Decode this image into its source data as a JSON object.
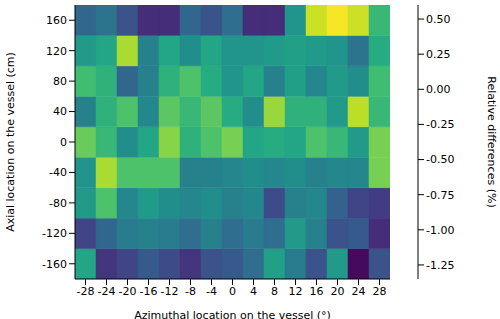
{
  "chart_data": {
    "type": "heatmap",
    "xlabel": "Azimuthal location on the vessel (°)",
    "ylabel": "Axial location on the vessel (cm)",
    "x": [
      -28,
      -24,
      -20,
      -16,
      -12,
      -8,
      -4,
      0,
      4,
      8,
      12,
      16,
      20,
      24,
      28
    ],
    "y": [
      -160,
      -120,
      -80,
      -40,
      0,
      40,
      80,
      120,
      160
    ],
    "xlim": [
      -30,
      30
    ],
    "ylim": [
      -180,
      180
    ],
    "xticks": [
      -28,
      -24,
      -20,
      -16,
      -12,
      -8,
      -4,
      0,
      4,
      8,
      12,
      16,
      20,
      24,
      28
    ],
    "yticks": [
      -160,
      -120,
      -80,
      -40,
      0,
      40,
      80,
      120,
      160
    ],
    "cells": [
      [
        -0.2,
        -1.05,
        -0.95,
        -0.8,
        -0.9,
        -1.05,
        -0.85,
        -0.8,
        -0.65,
        -0.25,
        -0.55,
        -0.85,
        -0.3,
        -1.3,
        -0.85
      ],
      [
        -0.95,
        -0.7,
        -0.55,
        -0.5,
        -0.55,
        -0.65,
        -0.5,
        -0.65,
        -0.55,
        -0.65,
        -0.3,
        -0.5,
        -0.85,
        -0.8,
        -1.1
      ],
      [
        -0.3,
        0.05,
        -0.45,
        -0.3,
        -0.4,
        -0.45,
        -0.4,
        -0.5,
        -0.45,
        -0.9,
        -0.5,
        -0.45,
        -0.75,
        -0.95,
        -1.0
      ],
      [
        -0.35,
        0.35,
        0.05,
        0.05,
        0.05,
        -0.5,
        -0.5,
        -0.45,
        -0.4,
        -0.45,
        -0.4,
        -0.5,
        -0.45,
        -0.45,
        0.2
      ],
      [
        0.15,
        -0.05,
        -0.4,
        -0.2,
        0.25,
        -0.1,
        0.05,
        0.2,
        -0.2,
        -0.15,
        -0.2,
        0.05,
        -0.05,
        -0.3,
        0.2
      ],
      [
        -0.5,
        -0.1,
        0.05,
        -0.45,
        0.1,
        -0.05,
        0.1,
        -0.15,
        -0.4,
        0.3,
        -0.1,
        -0.1,
        -0.3,
        0.4,
        -0.05
      ],
      [
        0.0,
        -0.1,
        -0.7,
        -0.5,
        -0.1,
        0.05,
        -0.15,
        -0.35,
        -0.2,
        -0.5,
        -0.25,
        -0.45,
        -0.3,
        -0.4,
        0.0
      ],
      [
        -0.3,
        -0.2,
        0.35,
        -0.5,
        -0.2,
        -0.4,
        -0.2,
        -0.35,
        -0.35,
        -0.3,
        -0.25,
        -0.3,
        -0.35,
        -0.6,
        -0.15
      ],
      [
        -0.7,
        -0.6,
        -0.85,
        -1.1,
        -1.1,
        -0.7,
        -0.85,
        -0.65,
        -1.1,
        -1.1,
        -0.35,
        0.45,
        0.58,
        0.45,
        -0.05
      ]
    ],
    "zlabel": "Relative differences (%)",
    "zlim": [
      -1.35,
      0.6
    ],
    "zticks": [
      -1.25,
      {
        "value": -1,
        "label": "-1.00"
      },
      -0.75,
      {
        "value": -0.5,
        "label": "-0.50"
      },
      -0.25,
      {
        "value": 0,
        "label": "0.00"
      },
      0.25,
      {
        "value": 0.5,
        "label": "0.50"
      }
    ]
  }
}
